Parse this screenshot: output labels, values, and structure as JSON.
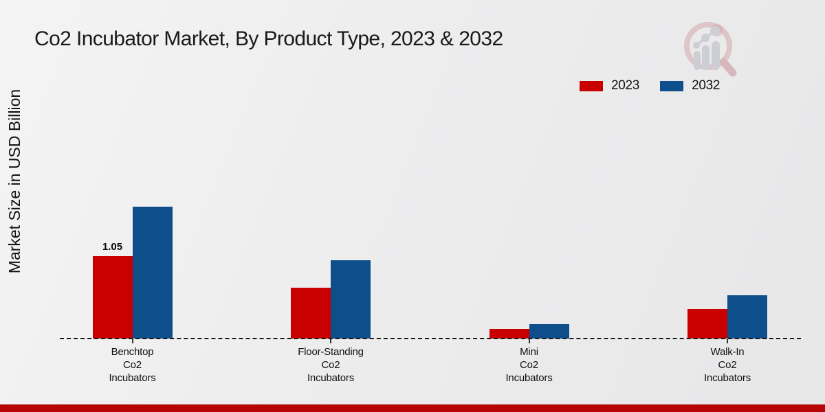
{
  "chart_data": {
    "type": "bar",
    "title": "Co2 Incubator Market, By Product Type, 2023 & 2032",
    "xlabel": "",
    "ylabel": "Market Size in USD Billion",
    "categories": [
      "Benchtop\nCo2\nIncubators",
      "Floor-Standing\nCo2\nIncubators",
      "Mini\nCo2\nIncubators",
      "Walk-In\nCo2\nIncubators"
    ],
    "series": [
      {
        "name": "2023",
        "color": "#c80000",
        "values": [
          1.05,
          0.65,
          0.12,
          0.38
        ]
      },
      {
        "name": "2032",
        "color": "#0e4f8b",
        "values": [
          1.68,
          1.0,
          0.18,
          0.55
        ]
      }
    ],
    "ylim": [
      0,
      3.5
    ],
    "grid": false,
    "legend_position": "top-right",
    "annotations": [
      {
        "text": "1.05",
        "series": "2023",
        "category_index": 0
      }
    ]
  },
  "branding": {
    "logo_icon": "magnifier-bar-chart-logo",
    "accent_strip_color": "#b70505"
  }
}
